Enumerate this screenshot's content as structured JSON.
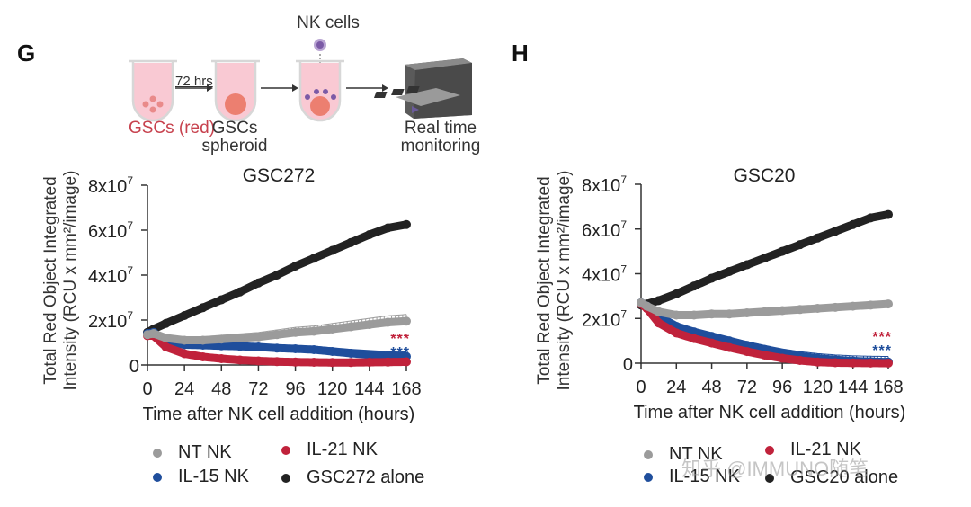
{
  "panels": {
    "G": {
      "letter": "G"
    },
    "H": {
      "letter": "H"
    }
  },
  "schematic": {
    "nk_cells": "NK cells",
    "hrs": "72 hrs",
    "gscs_red": "GSCs (red)",
    "gscs_spheroid_1": "GSCs",
    "gscs_spheroid_2": "spheroid",
    "monitoring_1": "Real time",
    "monitoring_2": "monitoring"
  },
  "watermark": "知乎 @IMMUNO随笔",
  "chart_data": [
    {
      "type": "line",
      "title": "GSC272",
      "xlabel": "Time after NK cell addition (hours)",
      "ylabel_line1": "Total Red Object Integrated",
      "ylabel_line2": "Intensity (RCU x mm²/image)",
      "xlim": [
        0,
        168
      ],
      "ylim": [
        0,
        80000000
      ],
      "xticks": [
        0,
        24,
        48,
        72,
        96,
        120,
        144,
        168
      ],
      "yticks": [
        0,
        20000000,
        40000000,
        60000000,
        80000000
      ],
      "ytick_labels": [
        {
          "base": "0",
          "exp": ""
        },
        {
          "base": "2x10",
          "exp": "7"
        },
        {
          "base": "4x10",
          "exp": "7"
        },
        {
          "base": "6x10",
          "exp": "7"
        },
        {
          "base": "8x10",
          "exp": "7"
        }
      ],
      "grid": false,
      "legend_position": "bottom",
      "significance": [
        {
          "text": "***",
          "color": "#c0223b",
          "series": "IL-21 NK"
        },
        {
          "text": "***",
          "color": "#1f4e9c",
          "series": "IL-15 NK"
        }
      ],
      "x": [
        0,
        4,
        12,
        24,
        36,
        48,
        60,
        72,
        84,
        96,
        108,
        120,
        132,
        144,
        156,
        168
      ],
      "series": [
        {
          "name": "GSC272 alone",
          "color": "#222222",
          "error_up": 0,
          "values": [
            14500000,
            16000000,
            18500000,
            22000000,
            25500000,
            29000000,
            32500000,
            36500000,
            40000000,
            44000000,
            47500000,
            51000000,
            54500000,
            58000000,
            61000000,
            62500000
          ]
        },
        {
          "name": "NT NK",
          "color": "#9b9b9b",
          "error_up": 3000000,
          "values": [
            13500000,
            14000000,
            12000000,
            11000000,
            11000000,
            11500000,
            12000000,
            12500000,
            13500000,
            14500000,
            15000000,
            16000000,
            17000000,
            18000000,
            19000000,
            19500000
          ]
        },
        {
          "name": "IL-15 NK",
          "color": "#1f4e9c",
          "error_up": 2000000,
          "values": [
            14000000,
            14500000,
            10500000,
            9000000,
            8800000,
            8500000,
            8300000,
            8000000,
            7500000,
            7200000,
            6800000,
            6000000,
            5200000,
            4600000,
            4100000,
            3800000
          ]
        },
        {
          "name": "IL-21 NK",
          "color": "#c0223b",
          "error_up": 0,
          "values": [
            13000000,
            13000000,
            8000000,
            5000000,
            3600000,
            2800000,
            2200000,
            1800000,
            1500000,
            1300000,
            1200000,
            1100000,
            1100000,
            1200000,
            1300000,
            1400000
          ]
        }
      ],
      "legend": [
        {
          "label": "NT NK",
          "color": "#9b9b9b"
        },
        {
          "label": "IL-21 NK",
          "color": "#c0223b"
        },
        {
          "label": "IL-15 NK",
          "color": "#1f4e9c"
        },
        {
          "label": "GSC272 alone",
          "color": "#222222"
        }
      ]
    },
    {
      "type": "line",
      "title": "GSC20",
      "xlabel": "Time after NK cell addition (hours)",
      "ylabel_line1": "Total Red Object Integrated",
      "ylabel_line2": "Intensity (RCU x mm²/image)",
      "xlim": [
        0,
        168
      ],
      "ylim": [
        0,
        80000000
      ],
      "xticks": [
        0,
        24,
        48,
        72,
        96,
        120,
        144,
        168
      ],
      "yticks": [
        0,
        20000000,
        40000000,
        60000000,
        80000000
      ],
      "ytick_labels": [
        {
          "base": "0",
          "exp": ""
        },
        {
          "base": "2x10",
          "exp": "7"
        },
        {
          "base": "4x10",
          "exp": "7"
        },
        {
          "base": "6x10",
          "exp": "7"
        },
        {
          "base": "8x10",
          "exp": "7"
        }
      ],
      "grid": false,
      "legend_position": "bottom",
      "significance": [
        {
          "text": "***",
          "color": "#c0223b",
          "series": "IL-21 NK"
        },
        {
          "text": "***",
          "color": "#1f4e9c",
          "series": "IL-15 NK"
        }
      ],
      "x": [
        0,
        4,
        12,
        24,
        36,
        48,
        60,
        72,
        84,
        96,
        108,
        120,
        132,
        144,
        156,
        168
      ],
      "series": [
        {
          "name": "GSC20 alone",
          "color": "#222222",
          "error_up": 0,
          "values": [
            26000000,
            26500000,
            28000000,
            31000000,
            34500000,
            38000000,
            41000000,
            44000000,
            47000000,
            50000000,
            53000000,
            56000000,
            59000000,
            62000000,
            65000000,
            66500000
          ]
        },
        {
          "name": "NT NK",
          "color": "#9b9b9b",
          "error_up": 0,
          "values": [
            27000000,
            25500000,
            23000000,
            21500000,
            21500000,
            22000000,
            22000000,
            22500000,
            23000000,
            23500000,
            24000000,
            24500000,
            25000000,
            25500000,
            26000000,
            26500000
          ]
        },
        {
          "name": "IL-15 NK",
          "color": "#1f4e9c",
          "error_up": 2500000,
          "values": [
            27000000,
            25500000,
            21000000,
            16500000,
            14000000,
            12000000,
            10000000,
            8000000,
            6200000,
            4500000,
            3200000,
            2200000,
            1500000,
            1000000,
            700000,
            500000
          ]
        },
        {
          "name": "IL-21 NK",
          "color": "#c0223b",
          "error_up": 0,
          "values": [
            26500000,
            24500000,
            18000000,
            13500000,
            11000000,
            9000000,
            7000000,
            5200000,
            3600000,
            2200000,
            1200000,
            500000,
            200000,
            100000,
            50000,
            0
          ]
        }
      ],
      "legend": [
        {
          "label": "NT NK",
          "color": "#9b9b9b"
        },
        {
          "label": "IL-21 NK",
          "color": "#c0223b"
        },
        {
          "label": "IL-15 NK",
          "color": "#1f4e9c"
        },
        {
          "label": "GSC20 alone",
          "color": "#222222"
        }
      ]
    }
  ]
}
